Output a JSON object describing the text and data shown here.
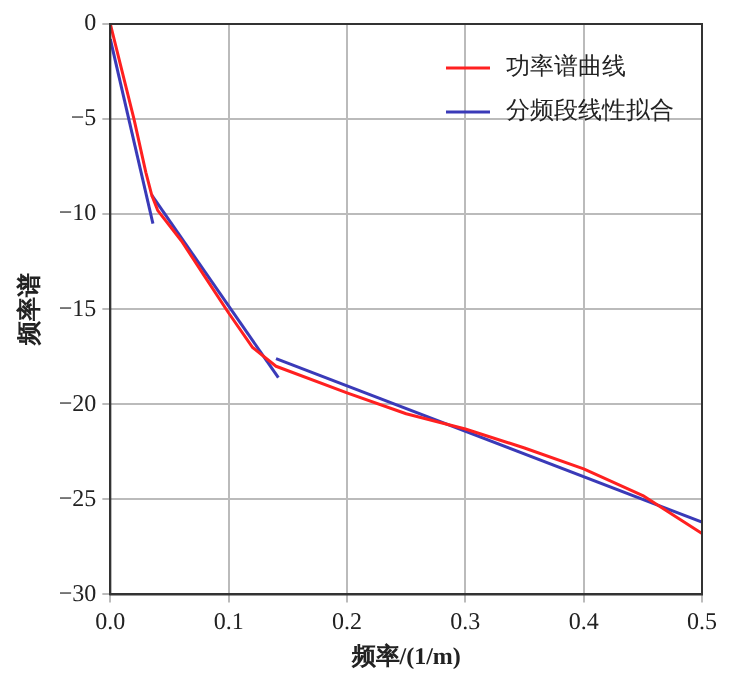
{
  "chart_data": {
    "type": "line",
    "xlabel": "频率/(1/m)",
    "ylabel": "频率谱",
    "xlim": [
      0,
      0.5
    ],
    "xticks": [
      {
        "value": 0,
        "label": "0.0"
      },
      0.1,
      0.2,
      0.3,
      0.4,
      0.5
    ],
    "ylim": [
      -30,
      0
    ],
    "yticks": [
      -30,
      -25,
      -20,
      -15,
      -10,
      -5,
      0
    ],
    "grid": true,
    "legend": "top right",
    "marker": "none",
    "line_style": "solid",
    "series": [
      {
        "name": "功率谱曲线",
        "color": "#ff2020",
        "x": [
          0,
          0.01,
          0.02,
          0.03,
          0.035,
          0.04,
          0.06,
          0.08,
          0.1,
          0.12,
          0.14,
          0.2,
          0.25,
          0.3,
          0.35,
          0.4,
          0.45,
          0.5
        ],
        "values": [
          0,
          -2.5,
          -5,
          -7.8,
          -9,
          -9.8,
          -11.4,
          -13.3,
          -15.2,
          -17,
          -18,
          -19.4,
          -20.5,
          -21.3,
          -22.3,
          -23.4,
          -24.8,
          -26.8
        ]
      },
      {
        "name": "分频段线性拟合",
        "color": "#3a3ab8",
        "x": [
          0,
          0.036
        ],
        "values": [
          -0.8,
          -10.5
        ]
      },
      {
        "color": "#3a3ab8",
        "x": [
          0.035,
          0.142
        ],
        "values": [
          -9,
          -18.6
        ]
      },
      {
        "color": "#3a3ab8",
        "x": [
          0.14,
          0.5
        ],
        "values": [
          -17.6,
          -26.2
        ]
      }
    ]
  }
}
